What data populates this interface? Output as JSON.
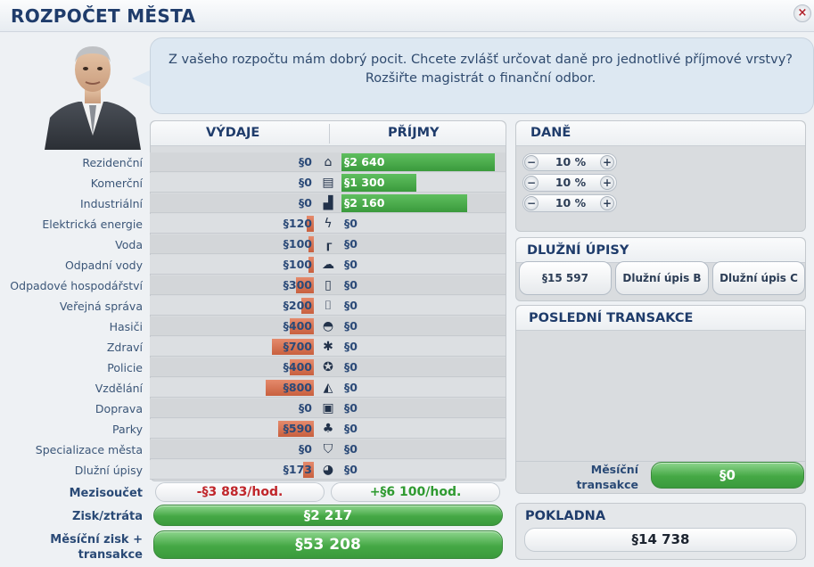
{
  "window": {
    "title": "ROZPOČET MĚSTA",
    "close_label": "×"
  },
  "advisor": {
    "message": "Z vašeho rozpočtu mám dobrý pocit. Chcete zvlášť určovat daně pro jednotlivé příjmové vrstvy? Rozšiřte magistrát o finanční odbor."
  },
  "budget": {
    "expenses_header": "VÝDAJE",
    "income_header": "PŘÍJMY",
    "rows": [
      {
        "label": "Rezidenční",
        "expense": "§0",
        "income": "§2 640",
        "icon": "house-icon",
        "income_bar": 1.0,
        "expense_bar": 0
      },
      {
        "label": "Komerční",
        "expense": "§0",
        "income": "§1 300",
        "icon": "shop-icon",
        "income_bar": 0.49,
        "expense_bar": 0
      },
      {
        "label": "Industriální",
        "expense": "§0",
        "income": "§2 160",
        "icon": "factory-icon",
        "income_bar": 0.82,
        "expense_bar": 0
      },
      {
        "label": "Elektrická energie",
        "expense": "§120",
        "income": "§0",
        "icon": "lightning-icon",
        "income_bar": 0,
        "expense_bar": 0.15
      },
      {
        "label": "Voda",
        "expense": "§100",
        "income": "§0",
        "icon": "faucet-icon",
        "income_bar": 0,
        "expense_bar": 0.12
      },
      {
        "label": "Odpadní vody",
        "expense": "§100",
        "income": "§0",
        "icon": "sewage-icon",
        "income_bar": 0,
        "expense_bar": 0.12
      },
      {
        "label": "Odpadové hospodářství",
        "expense": "§300",
        "income": "§0",
        "icon": "trash-icon",
        "income_bar": 0,
        "expense_bar": 0.37
      },
      {
        "label": "Veřejná správa",
        "expense": "§200",
        "income": "§0",
        "icon": "city-hall-icon",
        "income_bar": 0,
        "expense_bar": 0.25
      },
      {
        "label": "Hasiči",
        "expense": "§400",
        "income": "§0",
        "icon": "fire-helmet-icon",
        "income_bar": 0,
        "expense_bar": 0.5
      },
      {
        "label": "Zdraví",
        "expense": "§700",
        "income": "§0",
        "icon": "health-icon",
        "income_bar": 0,
        "expense_bar": 0.87
      },
      {
        "label": "Policie",
        "expense": "§400",
        "income": "§0",
        "icon": "police-badge-icon",
        "income_bar": 0,
        "expense_bar": 0.5
      },
      {
        "label": "Vzdělání",
        "expense": "§800",
        "income": "§0",
        "icon": "education-icon",
        "income_bar": 0,
        "expense_bar": 1.0
      },
      {
        "label": "Doprava",
        "expense": "§0",
        "income": "§0",
        "icon": "bus-icon",
        "income_bar": 0,
        "expense_bar": 0
      },
      {
        "label": "Parky",
        "expense": "§590",
        "income": "§0",
        "icon": "tree-icon",
        "income_bar": 0,
        "expense_bar": 0.74
      },
      {
        "label": "Specializace města",
        "expense": "§0",
        "income": "§0",
        "icon": "shield-icon",
        "income_bar": 0,
        "expense_bar": 0
      },
      {
        "label": "Dlužní úpisy",
        "expense": "§173",
        "income": "§0",
        "icon": "money-bag-icon",
        "income_bar": 0,
        "expense_bar": 0.22
      }
    ],
    "subtotal_label": "Mezisoučet",
    "subtotal_expense": "-§3 883/hod.",
    "subtotal_income": "+§6 100/hod.",
    "profit_label": "Zisk/ztráta",
    "profit_value": "§2 217",
    "monthly_label": "Měsíční zisk + transakce",
    "monthly_value": "§53 208"
  },
  "taxes": {
    "header": "DANĚ",
    "rows": [
      {
        "value": "10 %"
      },
      {
        "value": "10 %"
      },
      {
        "value": "10 %"
      }
    ],
    "minus_label": "−",
    "plus_label": "+"
  },
  "bonds": {
    "header": "DLUŽNÍ ÚPISY",
    "items": [
      "§15 597",
      "Dlužní úpis B",
      "Dlužní úpis C"
    ]
  },
  "transactions": {
    "header": "POSLEDNÍ TRANSAKCE",
    "monthly_label": "Měsíční transakce",
    "monthly_value": "§0"
  },
  "treasury": {
    "header": "POKLADNA",
    "value": "§14 738"
  },
  "colors": {
    "title": "#1f3c6b",
    "income_bar": "#45a845",
    "expense_bar": "#d06a48",
    "subtotal_negative": "#c0262b",
    "subtotal_positive": "#2f9a31"
  }
}
